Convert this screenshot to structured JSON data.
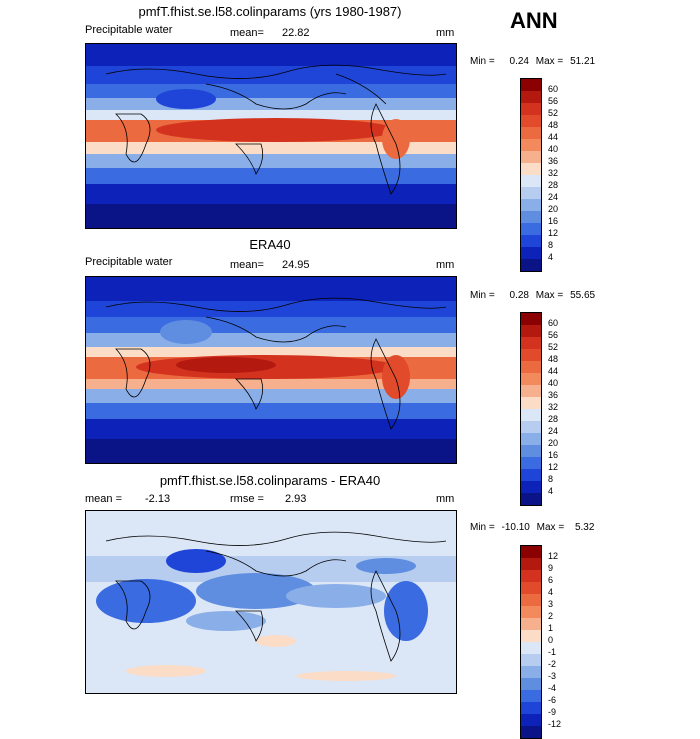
{
  "header": {
    "season": "ANN"
  },
  "panels": [
    {
      "title": "pmfT.fhist.se.l58.colinparams (yrs 1980-1987)",
      "field": "Precipitable water",
      "mean_label": "mean=",
      "mean_value": "22.82",
      "units": "mm",
      "min_label": "Min =",
      "min_value": "0.24",
      "max_label": "Max =",
      "max_value": "51.21",
      "colorbar": [
        "60",
        "56",
        "52",
        "48",
        "44",
        "40",
        "36",
        "32",
        "28",
        "24",
        "20",
        "16",
        "12",
        "8",
        "4"
      ]
    },
    {
      "title": "ERA40",
      "field": "Precipitable water",
      "mean_label": "mean=",
      "mean_value": "24.95",
      "units": "mm",
      "min_label": "Min =",
      "min_value": "0.28",
      "max_label": "Max =",
      "max_value": "55.65",
      "colorbar": [
        "60",
        "56",
        "52",
        "48",
        "44",
        "40",
        "36",
        "32",
        "28",
        "24",
        "20",
        "16",
        "12",
        "8",
        "4"
      ]
    },
    {
      "title": "pmfT.fhist.se.l58.colinparams - ERA40",
      "mean_label": "mean =",
      "mean_value": "-2.13",
      "rmse_label": "rmse =",
      "rmse_value": "2.93",
      "units": "mm",
      "min_label": "Min =",
      "min_value": "-10.10",
      "max_label": "Max =",
      "max_value": "5.32",
      "colorbar": [
        "12",
        "9",
        "6",
        "4",
        "3",
        "2",
        "1",
        "0",
        "-1",
        "-2",
        "-3",
        "-4",
        "-6",
        "-9",
        "-12"
      ]
    }
  ],
  "colors": {
    "abs_scale": [
      "#8b0000",
      "#b3190f",
      "#d2321e",
      "#e14a2a",
      "#ec6a3f",
      "#f28a5e",
      "#f6b08d",
      "#fbdcc7",
      "#dbe7f7",
      "#b6cdf0",
      "#8aaee8",
      "#5f8ee0",
      "#3a6be0",
      "#1f45d8",
      "#0c22b8",
      "#0a1486"
    ],
    "diff_scale": [
      "#8b0000",
      "#b3190f",
      "#d2321e",
      "#e14a2a",
      "#ec6a3f",
      "#f28a5e",
      "#f6b08d",
      "#fbdcc7",
      "#dbe7f7",
      "#b6cdf0",
      "#8aaee8",
      "#5f8ee0",
      "#3a6be0",
      "#1f45d8",
      "#0c22b8",
      "#0a1486"
    ]
  }
}
